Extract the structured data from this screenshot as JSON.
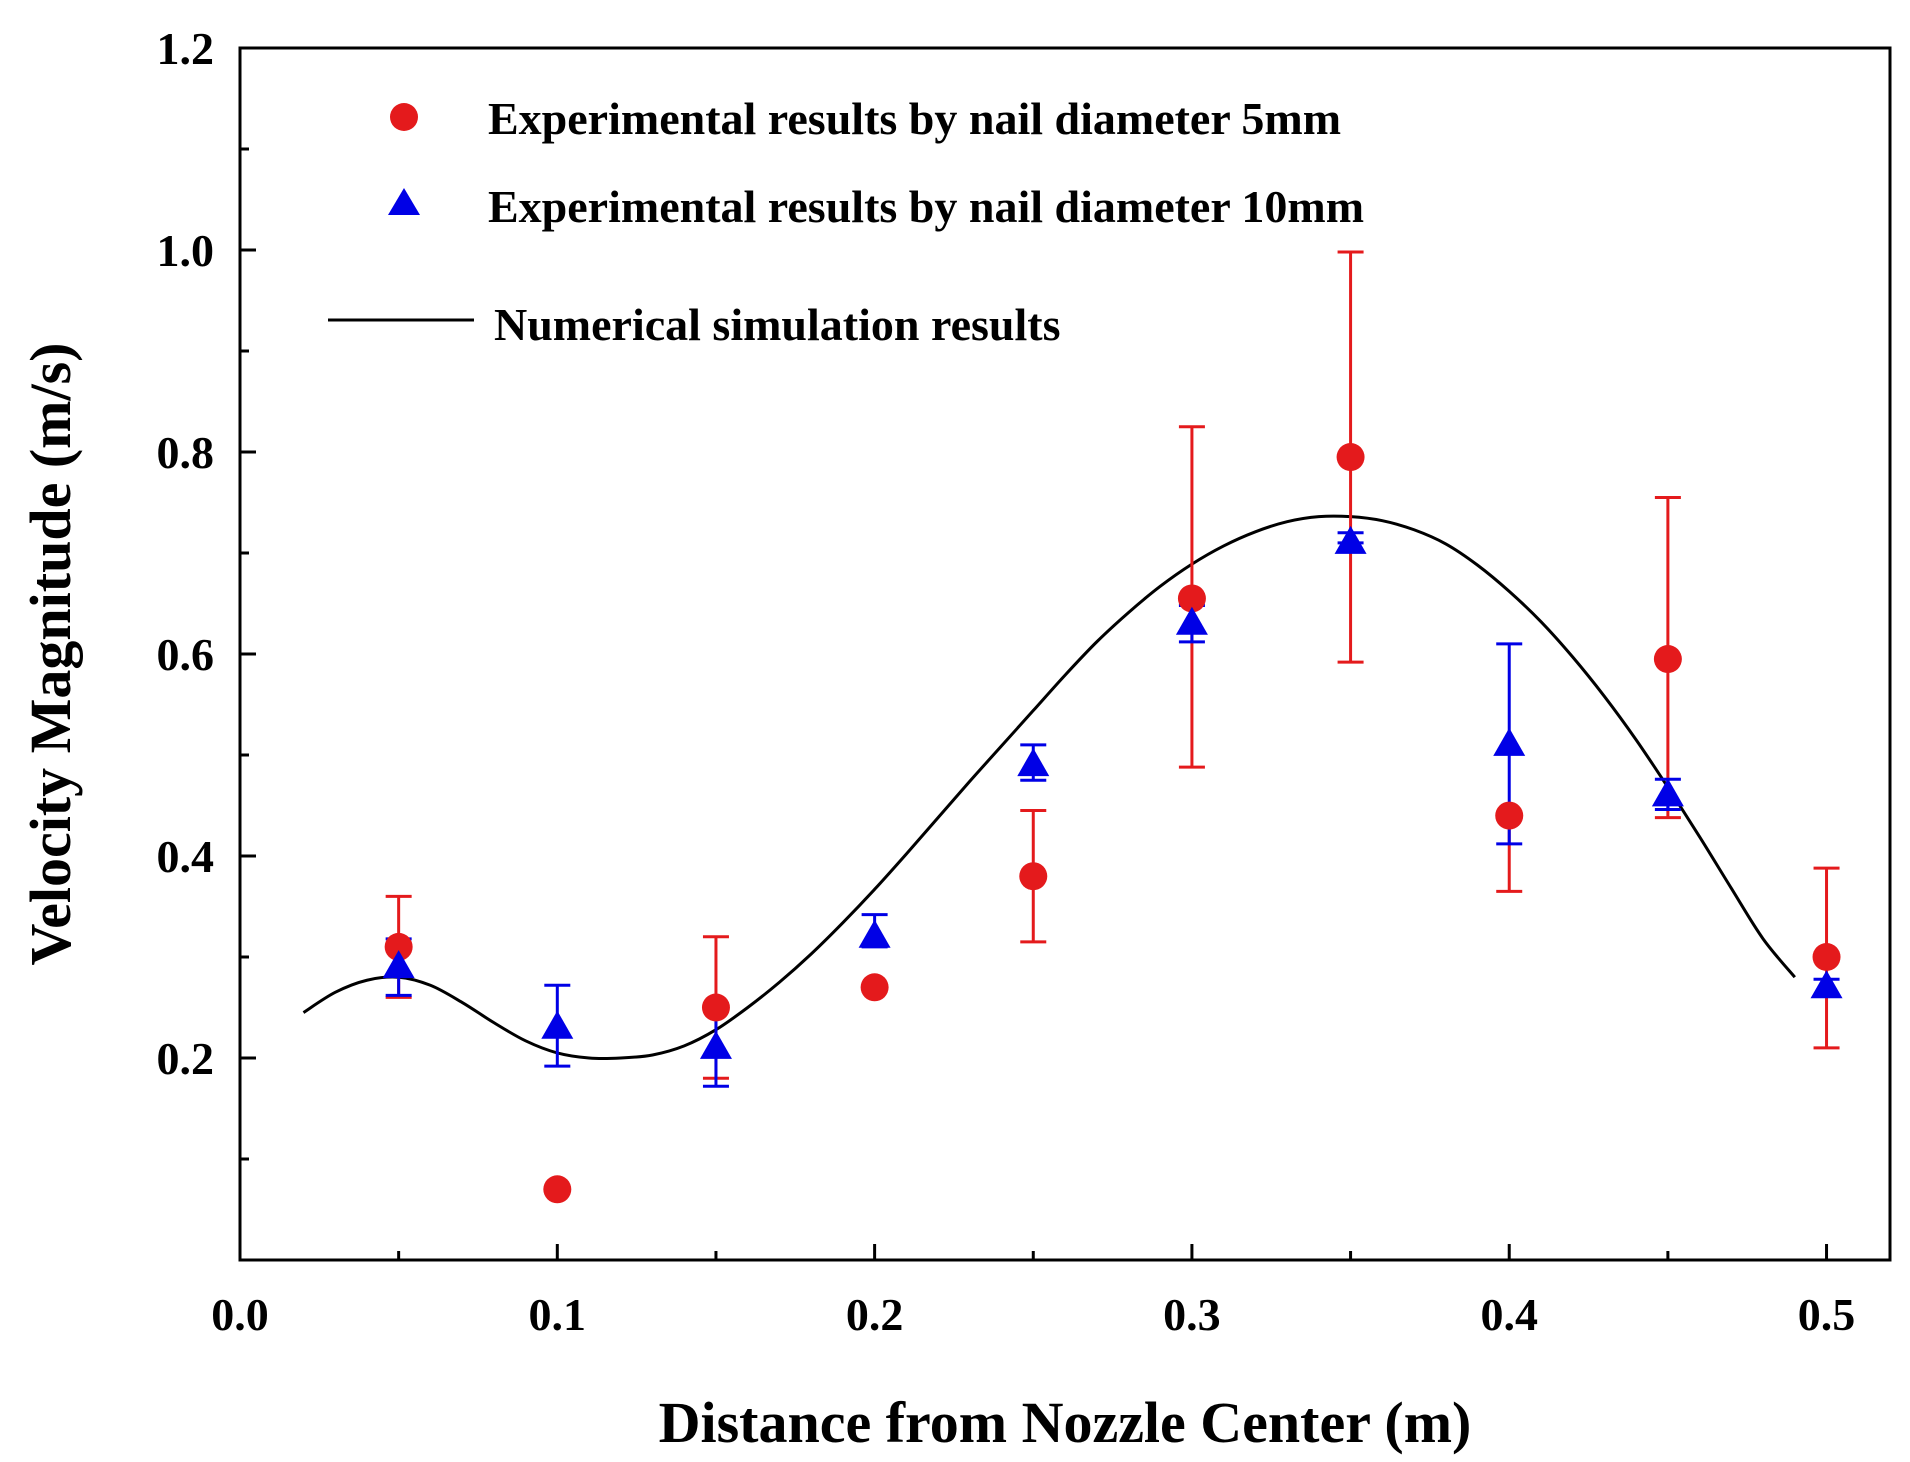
{
  "chart_data": {
    "type": "scatter",
    "title": "",
    "xlabel": "Distance from Nozzle Center (m)",
    "ylabel": "Velocity Magnitude (m/s)",
    "xlim": [
      0.0,
      0.52
    ],
    "ylim": [
      0.0,
      1.2
    ],
    "x_ticks": [
      0.0,
      0.1,
      0.2,
      0.3,
      0.4,
      0.5
    ],
    "x_tick_labels": [
      "0.0",
      "0.1",
      "0.2",
      "0.3",
      "0.4",
      "0.5"
    ],
    "y_ticks": [
      0.2,
      0.4,
      0.6,
      0.8,
      1.0,
      1.2
    ],
    "y_tick_labels": [
      "0.2",
      "0.4",
      "0.6",
      "0.8",
      "1.0",
      "1.2"
    ],
    "grid": false,
    "legend_position": "top-left",
    "series": [
      {
        "name": "Experimental results by nail diameter 5mm",
        "kind": "scatter",
        "marker": "circle",
        "color": "#e41a1c",
        "points": [
          {
            "x": 0.05,
            "y": 0.31,
            "err_low": 0.26,
            "err_high": 0.36
          },
          {
            "x": 0.1,
            "y": 0.07
          },
          {
            "x": 0.15,
            "y": 0.25,
            "err_low": 0.18,
            "err_high": 0.32
          },
          {
            "x": 0.2,
            "y": 0.27
          },
          {
            "x": 0.25,
            "y": 0.38,
            "err_low": 0.315,
            "err_high": 0.445
          },
          {
            "x": 0.3,
            "y": 0.655,
            "err_low": 0.488,
            "err_high": 0.825
          },
          {
            "x": 0.35,
            "y": 0.795,
            "err_low": 0.592,
            "err_high": 0.998
          },
          {
            "x": 0.4,
            "y": 0.44,
            "err_low": 0.365,
            "err_high": 0.44
          },
          {
            "x": 0.45,
            "y": 0.595,
            "err_low": 0.438,
            "err_high": 0.755
          },
          {
            "x": 0.5,
            "y": 0.3,
            "err_low": 0.21,
            "err_high": 0.388
          }
        ]
      },
      {
        "name": "Experimental results by nail diameter 10mm",
        "kind": "scatter",
        "marker": "triangle",
        "color": "#0000e6",
        "points": [
          {
            "x": 0.05,
            "y": 0.29,
            "err_low": 0.262,
            "err_high": 0.318
          },
          {
            "x": 0.1,
            "y": 0.23,
            "err_low": 0.192,
            "err_high": 0.272
          },
          {
            "x": 0.15,
            "y": 0.21,
            "err_low": 0.172,
            "err_high": 0.248
          },
          {
            "x": 0.2,
            "y": 0.32,
            "err_low": 0.31,
            "err_high": 0.342
          },
          {
            "x": 0.25,
            "y": 0.49,
            "err_low": 0.475,
            "err_high": 0.51
          },
          {
            "x": 0.3,
            "y": 0.63,
            "err_low": 0.612,
            "err_high": 0.648
          },
          {
            "x": 0.35,
            "y": 0.71,
            "err_low": 0.71,
            "err_high": 0.72
          },
          {
            "x": 0.4,
            "y": 0.51,
            "err_low": 0.412,
            "err_high": 0.61
          },
          {
            "x": 0.45,
            "y": 0.46,
            "err_low": 0.446,
            "err_high": 0.476
          },
          {
            "x": 0.5,
            "y": 0.27,
            "err_low": 0.262,
            "err_high": 0.278
          }
        ]
      },
      {
        "name": "Numerical simulation results",
        "kind": "line",
        "color": "#000000",
        "x": [
          0.02,
          0.03,
          0.04,
          0.05,
          0.06,
          0.07,
          0.08,
          0.09,
          0.1,
          0.11,
          0.12,
          0.13,
          0.14,
          0.15,
          0.16,
          0.17,
          0.18,
          0.19,
          0.2,
          0.21,
          0.22,
          0.23,
          0.24,
          0.25,
          0.26,
          0.27,
          0.28,
          0.29,
          0.3,
          0.31,
          0.32,
          0.33,
          0.34,
          0.35,
          0.36,
          0.37,
          0.38,
          0.39,
          0.4,
          0.41,
          0.42,
          0.43,
          0.44,
          0.45,
          0.46,
          0.47,
          0.48,
          0.49
        ],
        "y": [
          0.245,
          0.265,
          0.277,
          0.28,
          0.272,
          0.255,
          0.235,
          0.217,
          0.205,
          0.2,
          0.2,
          0.203,
          0.212,
          0.228,
          0.25,
          0.275,
          0.303,
          0.334,
          0.367,
          0.402,
          0.438,
          0.474,
          0.509,
          0.544,
          0.579,
          0.612,
          0.641,
          0.667,
          0.689,
          0.707,
          0.721,
          0.731,
          0.736,
          0.736,
          0.732,
          0.723,
          0.709,
          0.688,
          0.662,
          0.632,
          0.597,
          0.558,
          0.515,
          0.468,
          0.419,
          0.368,
          0.318,
          0.28
        ]
      }
    ]
  }
}
